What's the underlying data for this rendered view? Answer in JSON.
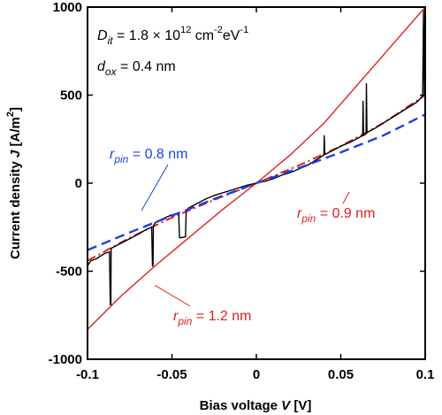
{
  "chart_data": {
    "type": "line",
    "xlabel": {
      "prefix": "Bias voltage ",
      "var": "V",
      "unit": " [V]"
    },
    "ylabel": {
      "prefix": "Current density  ",
      "var": "J",
      "unit_open": " [A/m",
      "unit_sup": "2",
      "unit_close": "]"
    },
    "xlim": [
      -0.1,
      0.1
    ],
    "ylim": [
      -1000,
      1000
    ],
    "xticks": [
      -0.1,
      -0.05,
      0,
      0.05,
      0.1
    ],
    "xtick_labels": [
      "-0.1",
      "-0.05",
      "0",
      "0.05",
      "0.1"
    ],
    "yticks": [
      -1000,
      -500,
      0,
      500,
      1000
    ],
    "ytick_labels": [
      "-1000",
      "-500",
      "0",
      "500",
      "1000"
    ],
    "grid": false,
    "colors": {
      "measured": "#000000",
      "rpin_08": "#1f3fe0",
      "rpin_09": "#e01f1f",
      "rpin_12": "#e01f1f"
    },
    "parameters": {
      "dit": {
        "sym": "D",
        "sub": "it",
        "text": " = 1.8 × 10",
        "sup": "12",
        "unit": " cm",
        "unit_sup1": "-2",
        "unit_mid": "eV",
        "unit_sup2": "-1"
      },
      "dox": {
        "sym": "d",
        "sub": "ox",
        "text": " = 0.4 nm"
      }
    },
    "annotations": [
      {
        "id": "rpin_08",
        "sym": "r",
        "sub": "pin",
        "text": " = 0.8 nm",
        "color": "#1f3fe0",
        "pointer_to": [
          -0.068,
          -155
        ]
      },
      {
        "id": "rpin_09",
        "sym": "r",
        "sub": "pin",
        "text": " = 0.9 nm",
        "color": "#e01f1f",
        "pointer_to": [
          0.055,
          -50
        ]
      },
      {
        "id": "rpin_12",
        "sym": "r",
        "sub": "pin",
        "text": " = 1.2 nm",
        "color": "#e01f1f",
        "pointer_to": [
          -0.06,
          -580
        ]
      }
    ],
    "series": [
      {
        "id": "measured",
        "style": "solid-thin",
        "x": [
          -0.1,
          -0.1,
          -0.098,
          -0.095,
          -0.09,
          -0.087,
          -0.0865,
          -0.0862,
          -0.086,
          -0.085,
          -0.08,
          -0.075,
          -0.07,
          -0.065,
          -0.062,
          -0.0615,
          -0.0612,
          -0.061,
          -0.06,
          -0.055,
          -0.05,
          -0.046,
          -0.0455,
          -0.045,
          -0.042,
          -0.0415,
          -0.041,
          -0.04,
          -0.035,
          -0.03,
          -0.025,
          -0.02,
          -0.015,
          -0.01,
          -0.005,
          0,
          0.005,
          0.01,
          0.015,
          0.02,
          0.025,
          0.03,
          0.035,
          0.04,
          0.0402,
          0.0405,
          0.041,
          0.045,
          0.05,
          0.055,
          0.06,
          0.063,
          0.0632,
          0.0635,
          0.064,
          0.065,
          0.0652,
          0.0655,
          0.066,
          0.07,
          0.075,
          0.08,
          0.085,
          0.09,
          0.095,
          0.0985,
          0.099,
          0.0995,
          0.1
        ],
        "y": [
          -790,
          -470,
          -440,
          -430,
          -400,
          -390,
          -690,
          -690,
          -370,
          -365,
          -340,
          -315,
          -290,
          -262,
          -250,
          -470,
          -470,
          -245,
          -225,
          -200,
          -180,
          -170,
          -310,
          -310,
          -305,
          -150,
          -150,
          -140,
          -115,
          -90,
          -70,
          -55,
          -40,
          -25,
          -10,
          0,
          10,
          25,
          45,
          60,
          80,
          100,
          130,
          160,
          270,
          165,
          165,
          185,
          210,
          230,
          255,
          270,
          465,
          270,
          275,
          280,
          565,
          285,
          290,
          310,
          340,
          370,
          400,
          430,
          460,
          495,
          980,
          500,
          515
        ]
      },
      {
        "id": "rpin_08",
        "style": "dashed-blue",
        "x": [
          -0.1,
          -0.075,
          -0.05,
          -0.025,
          0,
          0.025,
          0.05,
          0.075,
          0.1
        ],
        "y": [
          -380,
          -280,
          -185,
          -90,
          0,
          85,
          175,
          270,
          390
        ]
      },
      {
        "id": "rpin_09",
        "style": "dashdot-red",
        "x": [
          -0.1,
          -0.075,
          -0.05,
          -0.025,
          0,
          0.025,
          0.05,
          0.075,
          0.1
        ],
        "y": [
          -440,
          -310,
          -195,
          -95,
          0,
          100,
          210,
          340,
          500
        ]
      },
      {
        "id": "rpin_12",
        "style": "solid-red",
        "x": [
          -0.1,
          -0.08,
          -0.06,
          -0.04,
          -0.02,
          0,
          0.02,
          0.04,
          0.06,
          0.08,
          0.1
        ],
        "y": [
          -830,
          -640,
          -470,
          -310,
          -150,
          0,
          160,
          340,
          560,
          780,
          1000
        ]
      }
    ]
  }
}
